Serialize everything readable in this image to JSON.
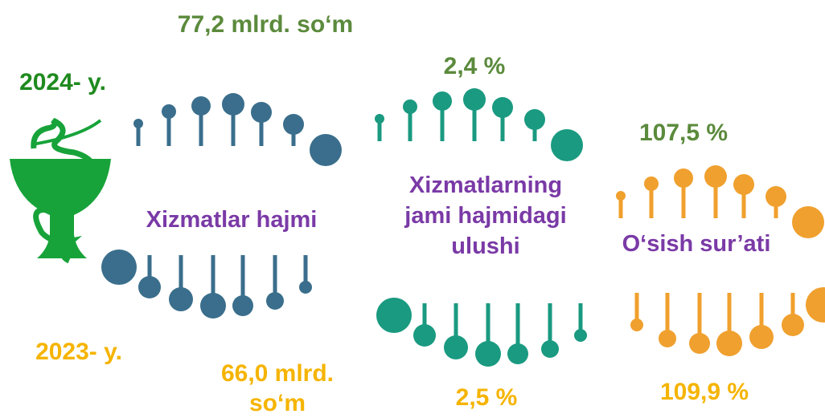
{
  "years": {
    "current": "2024- y.",
    "previous": "2023- y."
  },
  "groups": [
    {
      "label": [
        "Xizmatlar hajmi"
      ],
      "current": [
        "77,2 mlrd. so‘m"
      ],
      "previous": [
        "66,0 mlrd.",
        "so‘m"
      ]
    },
    {
      "label": [
        "Xizmatlarning",
        "jami hajmidagi",
        "ulushi"
      ],
      "current": [
        "2,4 %"
      ],
      "previous": [
        "2,5 %"
      ]
    },
    {
      "label": [
        "O‘sish sur’ati"
      ],
      "current": [
        "107,5 %"
      ],
      "previous": [
        "109,9 %"
      ]
    }
  ]
}
